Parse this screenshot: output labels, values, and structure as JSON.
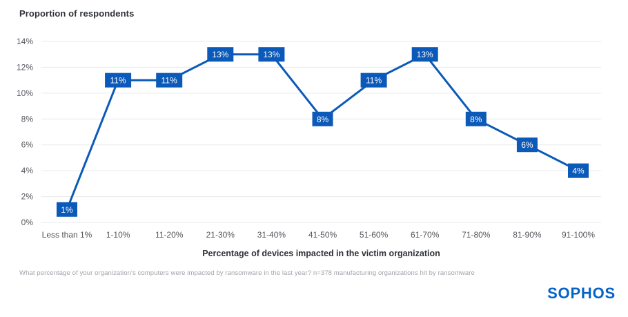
{
  "chart": {
    "footnote": "What percentage of your organization's computers were impacted by ransomware in the last year? n=378 manufacturing organizations hit by ransomware",
    "logo": "SOPHOS"
  },
  "colors": {
    "accent": "#0b59b8",
    "grid": "#e9e9e9",
    "axis_text": "#54565c",
    "title_text": "#2f3237",
    "footnote_text": "#a3a3ab",
    "logo_blue": "#0563c8",
    "label_text": "#ffffff"
  },
  "chart_data": {
    "type": "line",
    "title": "Proportion of respondents",
    "xlabel": "Percentage of devices impacted in the victim organization",
    "ylabel": "Proportion of respondents",
    "categories": [
      "Less than 1%",
      "1-10%",
      "11-20%",
      "21-30%",
      "31-40%",
      "41-50%",
      "51-60%",
      "61-70%",
      "71-80%",
      "81-90%",
      "91-100%"
    ],
    "values": [
      1,
      11,
      11,
      13,
      13,
      8,
      11,
      13,
      8,
      6,
      4
    ],
    "point_labels": [
      "1%",
      "11%",
      "11%",
      "13%",
      "13%",
      "8%",
      "11%",
      "13%",
      "8%",
      "6%",
      "4%"
    ],
    "ylim": [
      0,
      14
    ],
    "ytick_step": 2,
    "ytick_labels": [
      "0%",
      "2%",
      "4%",
      "6%",
      "8%",
      "10%",
      "12%",
      "14%"
    ],
    "grid": "horizontal-only",
    "legend": "none",
    "marker_style": "filled-square-label"
  }
}
